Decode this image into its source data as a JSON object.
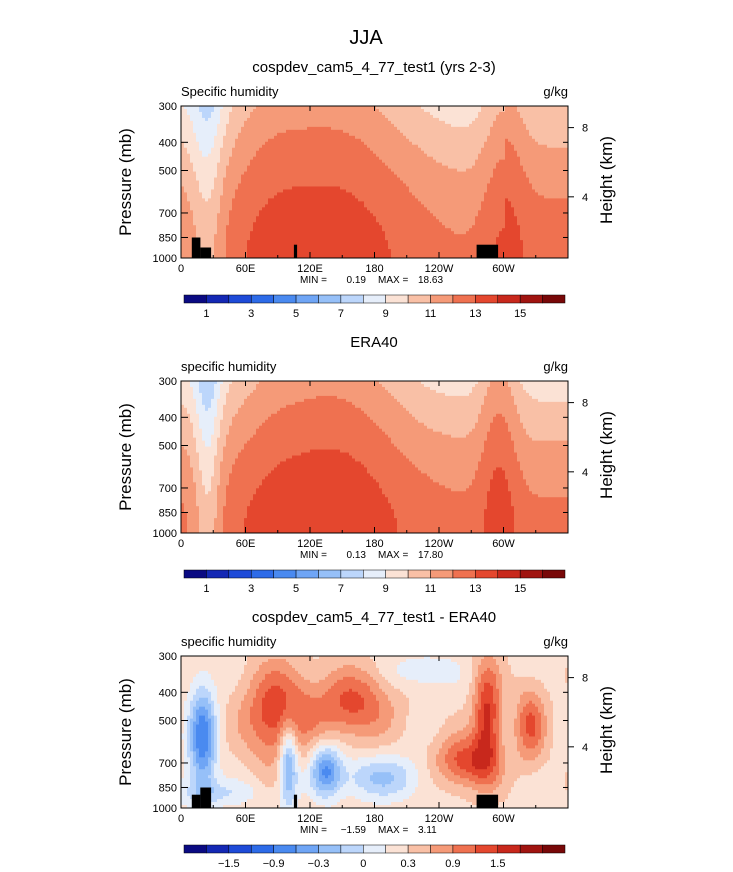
{
  "figure": {
    "suptitle": "JJA"
  },
  "chart_data": [
    {
      "type": "heatmap",
      "title": "cospdev_cam5_4_77_test1 (yrs 2-3)",
      "left_title": "Specific humidity",
      "units": "g/kg",
      "xlabel": "",
      "ylabel": "Pressure (mb)",
      "ylabel_right": "Height (km)",
      "x_ticks": [
        "0",
        "60E",
        "120E",
        "180",
        "120W",
        "60W"
      ],
      "x_tick_lon": [
        0,
        60,
        120,
        180,
        240,
        300
      ],
      "xlim": [
        0,
        360
      ],
      "y_ticks": [
        "300",
        "400",
        "500",
        "700",
        "850",
        "1000"
      ],
      "y_tick_p": [
        300,
        400,
        500,
        700,
        850,
        1000
      ],
      "ylim": [
        1000,
        300
      ],
      "y_scale": "log",
      "right_ticks": [
        "8",
        "4"
      ],
      "right_tick_p": [
        356,
        616
      ],
      "stats": {
        "min_label": "MIN =",
        "min": "0.19",
        "max_label": "MAX =",
        "max": "18.63"
      },
      "colorbar": {
        "labels": [
          "1",
          "3",
          "5",
          "7",
          "9",
          "11",
          "13",
          "15"
        ],
        "colors": [
          "#0a0a82",
          "#1428b4",
          "#1e4bd8",
          "#2d6be8",
          "#4a8af0",
          "#6fa5f5",
          "#96c0f8",
          "#bcd6fb",
          "#e6eefa",
          "#fbe2d5",
          "#f9c0a6",
          "#f59a78",
          "#ef7150",
          "#e4472e",
          "#c8281c",
          "#a01410",
          "#780808"
        ]
      },
      "field": "model",
      "topography": [
        [
          10,
          18,
          850
        ],
        [
          18,
          28,
          920
        ],
        [
          105,
          108,
          900
        ],
        [
          275,
          295,
          900
        ]
      ]
    },
    {
      "type": "heatmap",
      "title": "ERA40",
      "left_title": "specific humidity",
      "units": "g/kg",
      "xlabel": "",
      "ylabel": "Pressure (mb)",
      "ylabel_right": "Height (km)",
      "x_ticks": [
        "0",
        "60E",
        "120E",
        "180",
        "120W",
        "60W"
      ],
      "x_tick_lon": [
        0,
        60,
        120,
        180,
        240,
        300
      ],
      "xlim": [
        0,
        360
      ],
      "y_ticks": [
        "300",
        "400",
        "500",
        "700",
        "850",
        "1000"
      ],
      "y_tick_p": [
        300,
        400,
        500,
        700,
        850,
        1000
      ],
      "ylim": [
        1000,
        300
      ],
      "y_scale": "log",
      "right_ticks": [
        "8",
        "4"
      ],
      "right_tick_p": [
        356,
        616
      ],
      "stats": {
        "min_label": "MIN =",
        "min": "0.13",
        "max_label": "MAX =",
        "max": "17.80"
      },
      "colorbar": {
        "labels": [
          "1",
          "3",
          "5",
          "7",
          "9",
          "11",
          "13",
          "15"
        ],
        "colors": [
          "#0a0a82",
          "#1428b4",
          "#1e4bd8",
          "#2d6be8",
          "#4a8af0",
          "#6fa5f5",
          "#96c0f8",
          "#bcd6fb",
          "#e6eefa",
          "#fbe2d5",
          "#f9c0a6",
          "#f59a78",
          "#ef7150",
          "#e4472e",
          "#c8281c",
          "#a01410",
          "#780808"
        ]
      },
      "field": "obs",
      "topography": []
    },
    {
      "type": "heatmap",
      "title": "cospdev_cam5_4_77_test1 - ERA40",
      "left_title": "specific humidity",
      "units": "g/kg",
      "xlabel": "",
      "ylabel": "Pressure (mb)",
      "ylabel_right": "Height (km)",
      "x_ticks": [
        "0",
        "60E",
        "120E",
        "180",
        "120W",
        "60W"
      ],
      "x_tick_lon": [
        0,
        60,
        120,
        180,
        240,
        300
      ],
      "xlim": [
        0,
        360
      ],
      "y_ticks": [
        "300",
        "400",
        "500",
        "700",
        "850",
        "1000"
      ],
      "y_tick_p": [
        300,
        400,
        500,
        700,
        850,
        1000
      ],
      "ylim": [
        1000,
        300
      ],
      "y_scale": "log",
      "right_ticks": [
        "8",
        "4"
      ],
      "right_tick_p": [
        356,
        616
      ],
      "stats": {
        "min_label": "MIN =",
        "min": "−1.59",
        "max_label": "MAX =",
        "max": "3.11"
      },
      "colorbar": {
        "labels": [
          "−1.5",
          "−0.9",
          "−0.3",
          "0",
          "0.3",
          "0.9",
          "1.5"
        ],
        "colors": [
          "#0a0a82",
          "#1428b4",
          "#1e4bd8",
          "#2d6be8",
          "#4a8af0",
          "#6fa5f5",
          "#96c0f8",
          "#bcd6fb",
          "#e6eefa",
          "#fbe2d5",
          "#f9c0a6",
          "#f59a78",
          "#ef7150",
          "#e4472e",
          "#c8281c",
          "#a01410",
          "#780808"
        ]
      },
      "field": "diff",
      "topography": [
        [
          10,
          18,
          900
        ],
        [
          18,
          28,
          850
        ],
        [
          105,
          108,
          900
        ],
        [
          275,
          295,
          900
        ]
      ]
    }
  ]
}
